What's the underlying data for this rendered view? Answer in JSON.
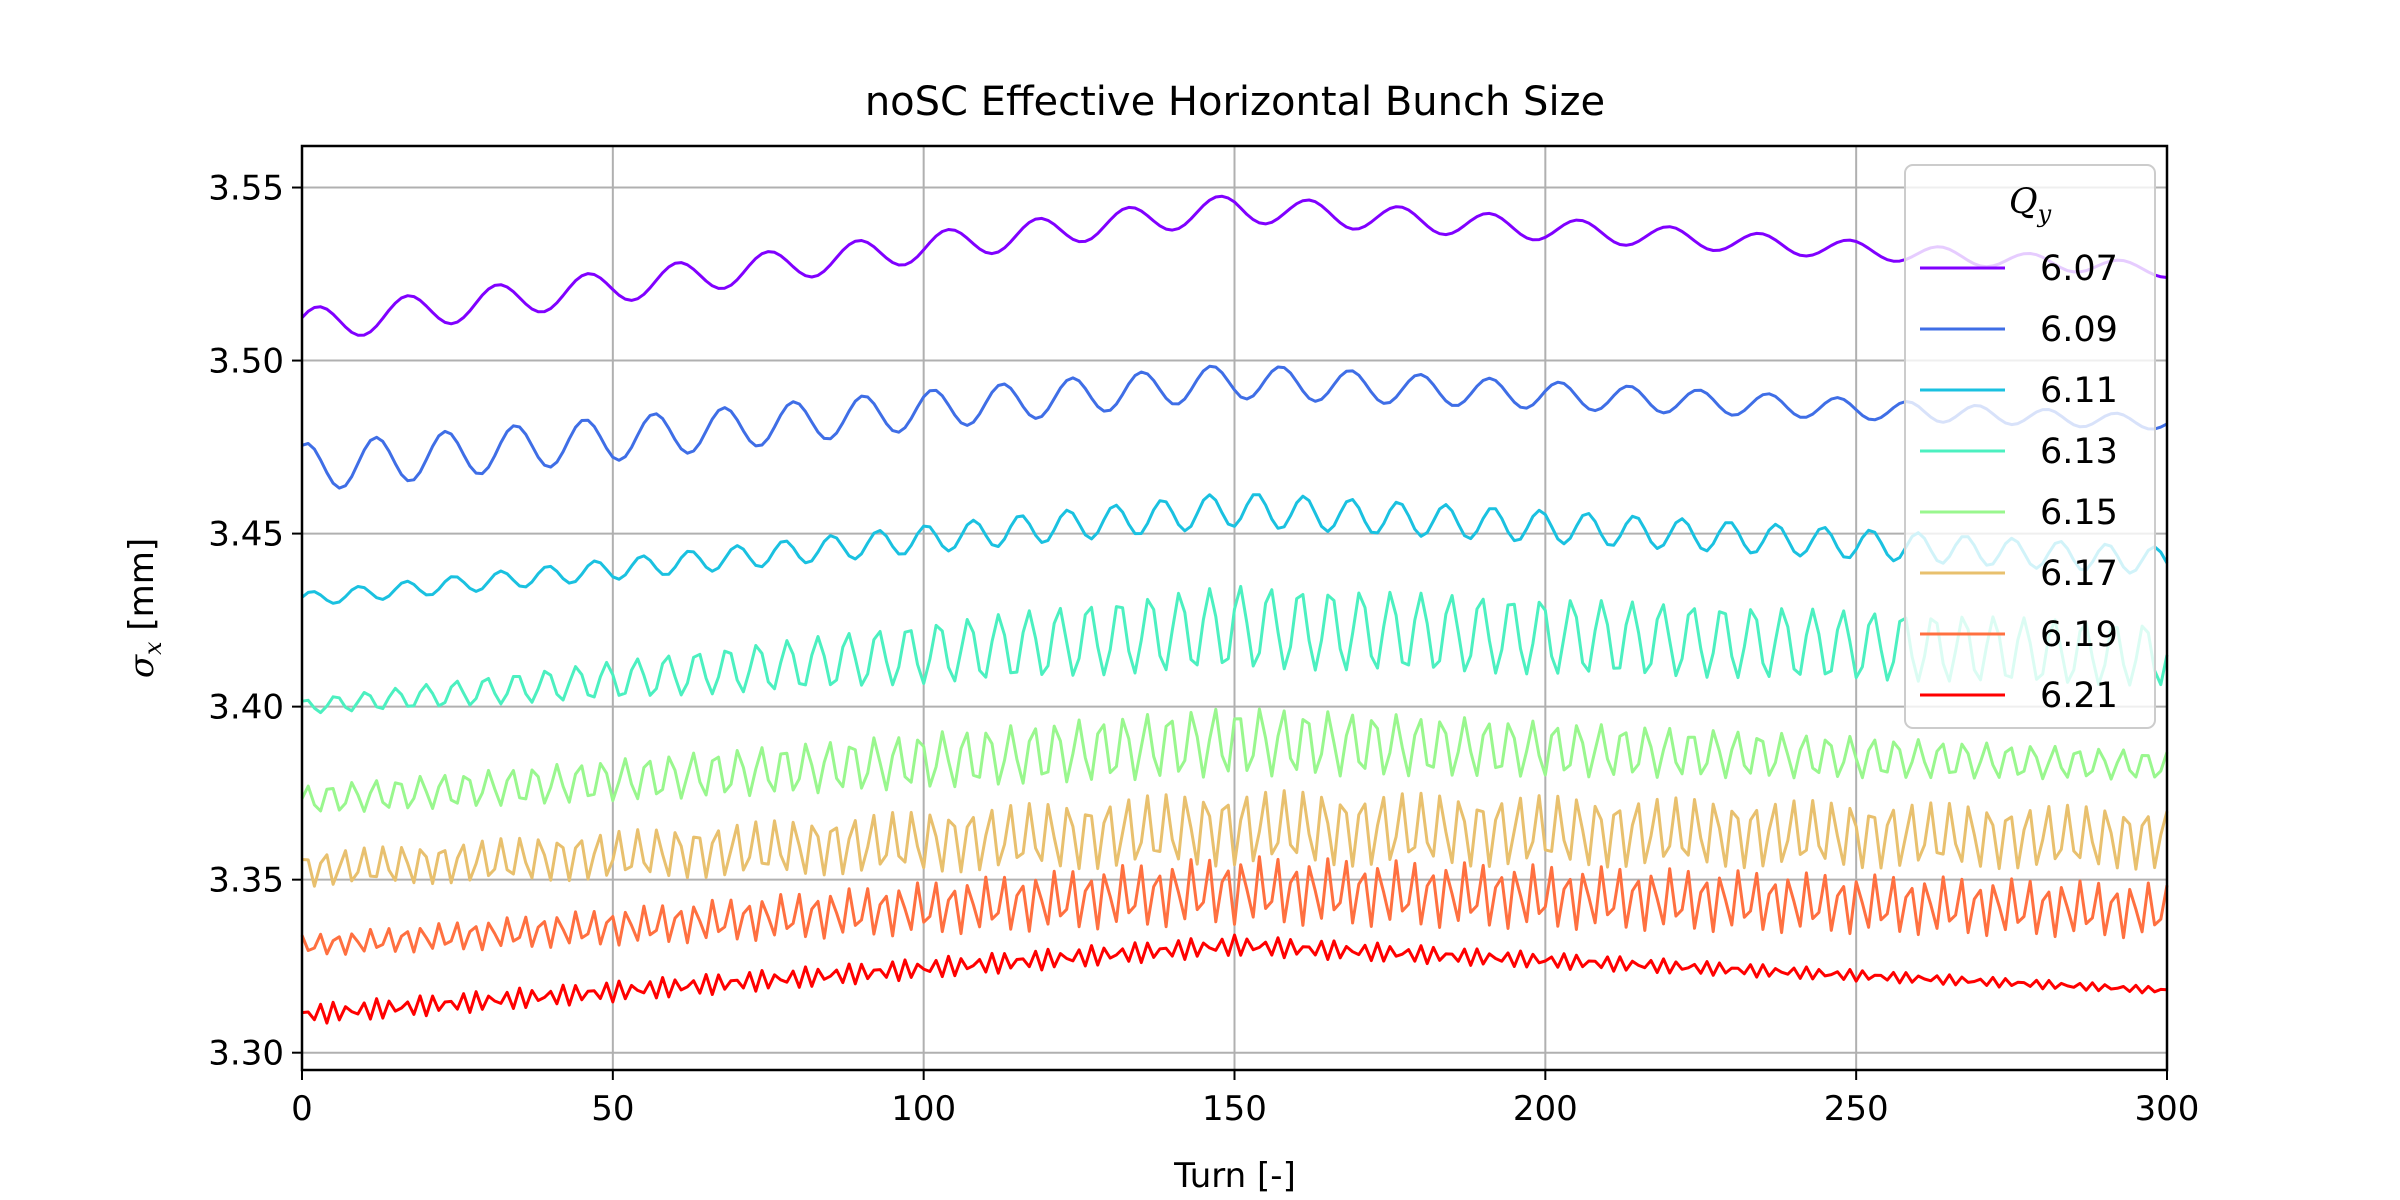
{
  "chart_data": {
    "type": "line",
    "title": "noSC Effective Horizontal Bunch Size",
    "xlabel": "Turn [-]",
    "ylabel_symbol": "σ",
    "ylabel_sub": "x",
    "ylabel_unit": " [mm]",
    "xlim": [
      0,
      300
    ],
    "ylim": [
      3.295,
      3.562
    ],
    "xticks": [
      "0",
      "50",
      "100",
      "150",
      "200",
      "250",
      "300"
    ],
    "yticks": [
      "3.30",
      "3.35",
      "3.40",
      "3.45",
      "3.50",
      "3.55"
    ],
    "grid": true,
    "legend": {
      "title_main": "Q",
      "title_sub": "y",
      "placement": "upper-right"
    },
    "series": [
      {
        "name": "6.07",
        "color": "#8000ff",
        "base_start": 3.51,
        "base_peak": 3.544,
        "base_end": 3.526,
        "peak_turn": 150,
        "amp_start": 0.005,
        "amp_peak": 0.004,
        "amp_end": 0.002,
        "period": 14.5,
        "phase": 0.5
      },
      {
        "name": "6.09",
        "color": "#3f6ee6",
        "base_start": 3.469,
        "base_peak": 3.494,
        "base_end": 3.482,
        "peak_turn": 150,
        "amp_start": 0.007,
        "amp_peak": 0.005,
        "amp_end": 0.002,
        "period": 11.2,
        "phase": 1.2
      },
      {
        "name": "6.11",
        "color": "#1ac1e0",
        "base_start": 3.431,
        "base_peak": 3.457,
        "base_end": 3.442,
        "peak_turn": 150,
        "amp_start": 0.002,
        "amp_peak": 0.005,
        "amp_end": 0.004,
        "period": 7.6,
        "phase": 0.3
      },
      {
        "name": "6.13",
        "color": "#4cf0c0",
        "base_start": 3.4,
        "base_peak": 3.423,
        "base_end": 3.415,
        "peak_turn": 150,
        "amp_start": 0.002,
        "amp_peak": 0.012,
        "amp_end": 0.009,
        "period": 4.85,
        "phase": 0.9
      },
      {
        "name": "6.15",
        "color": "#99f78e",
        "base_start": 3.373,
        "base_peak": 3.39,
        "base_end": 3.383,
        "peak_turn": 150,
        "amp_start": 0.004,
        "amp_peak": 0.01,
        "amp_end": 0.004,
        "period": 3.65,
        "phase": 0.1
      },
      {
        "name": "6.17",
        "color": "#e8c06e",
        "base_start": 3.353,
        "base_peak": 3.365,
        "base_end": 3.362,
        "peak_turn": 150,
        "amp_start": 0.005,
        "amp_peak": 0.011,
        "amp_end": 0.009,
        "period": 3.15,
        "phase": 0.6
      },
      {
        "name": "6.19",
        "color": "#ff7040",
        "base_start": 3.331,
        "base_peak": 3.347,
        "base_end": 3.341,
        "peak_turn": 150,
        "amp_start": 0.003,
        "amp_peak": 0.01,
        "amp_end": 0.008,
        "period": 2.75,
        "phase": 1.4
      },
      {
        "name": "6.21",
        "color": "#ff0000",
        "base_start": 3.311,
        "base_peak": 3.331,
        "base_end": 3.318,
        "peak_turn": 150,
        "amp_start": 0.003,
        "amp_peak": 0.003,
        "amp_end": 0.001,
        "period": 2.3,
        "phase": 0.2
      }
    ]
  }
}
